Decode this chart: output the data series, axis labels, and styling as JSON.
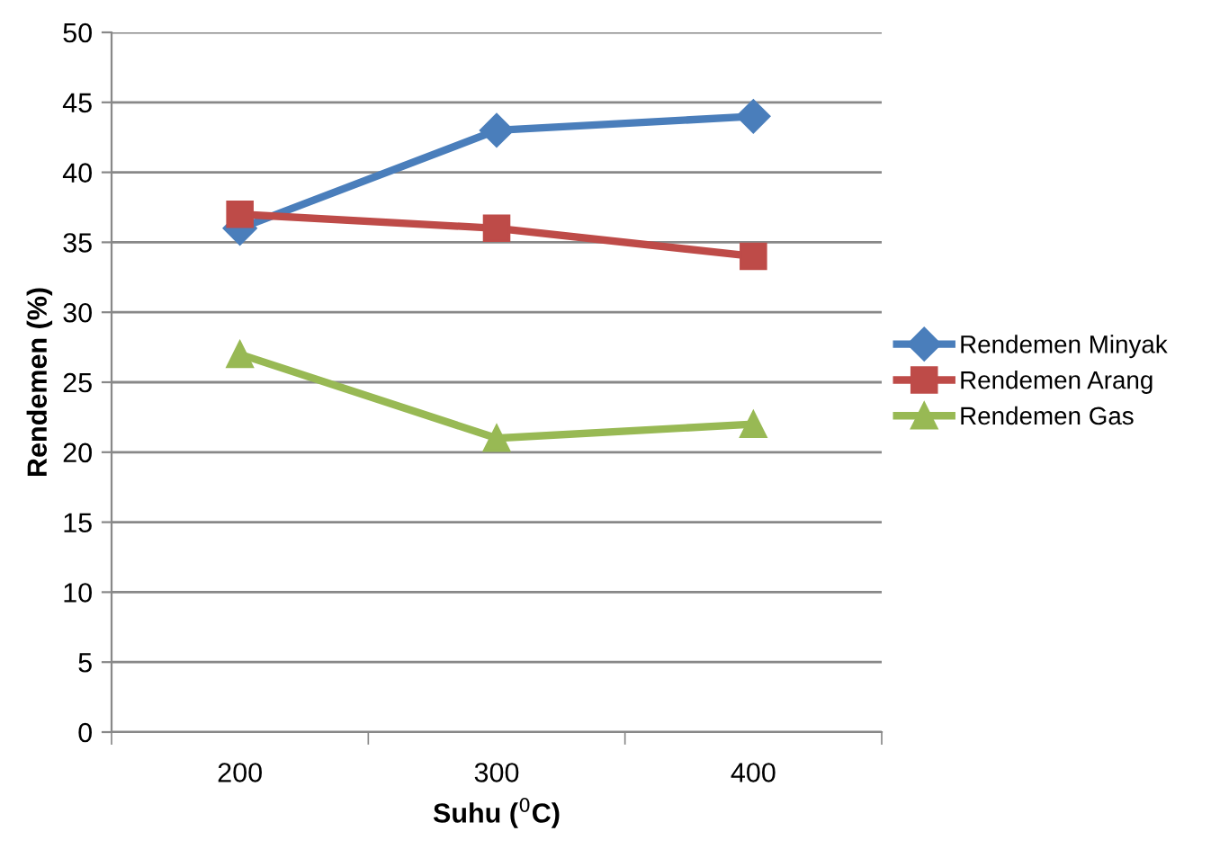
{
  "chart_data": {
    "type": "line",
    "xlabel": "Suhu ($^{0}$C)",
    "ylabel": "Rendemen (%)",
    "categories": [
      "200",
      "300",
      "400"
    ],
    "series": [
      {
        "name": "Rendemen Minyak",
        "color": "#4a7ebb",
        "marker": "diamond",
        "values": [
          36,
          43,
          44
        ]
      },
      {
        "name": "Rendemen Arang",
        "color": "#be4b48",
        "marker": "square",
        "values": [
          37,
          36,
          34
        ]
      },
      {
        "name": "Rendemen Gas",
        "color": "#98b954",
        "marker": "triangle",
        "values": [
          27,
          21,
          22
        ]
      }
    ],
    "ylim": [
      0,
      50
    ],
    "yticks": [
      0,
      5,
      10,
      15,
      20,
      25,
      30,
      35,
      40,
      45,
      50
    ],
    "grid": "y",
    "legend": "right",
    "line_style": "solid"
  }
}
